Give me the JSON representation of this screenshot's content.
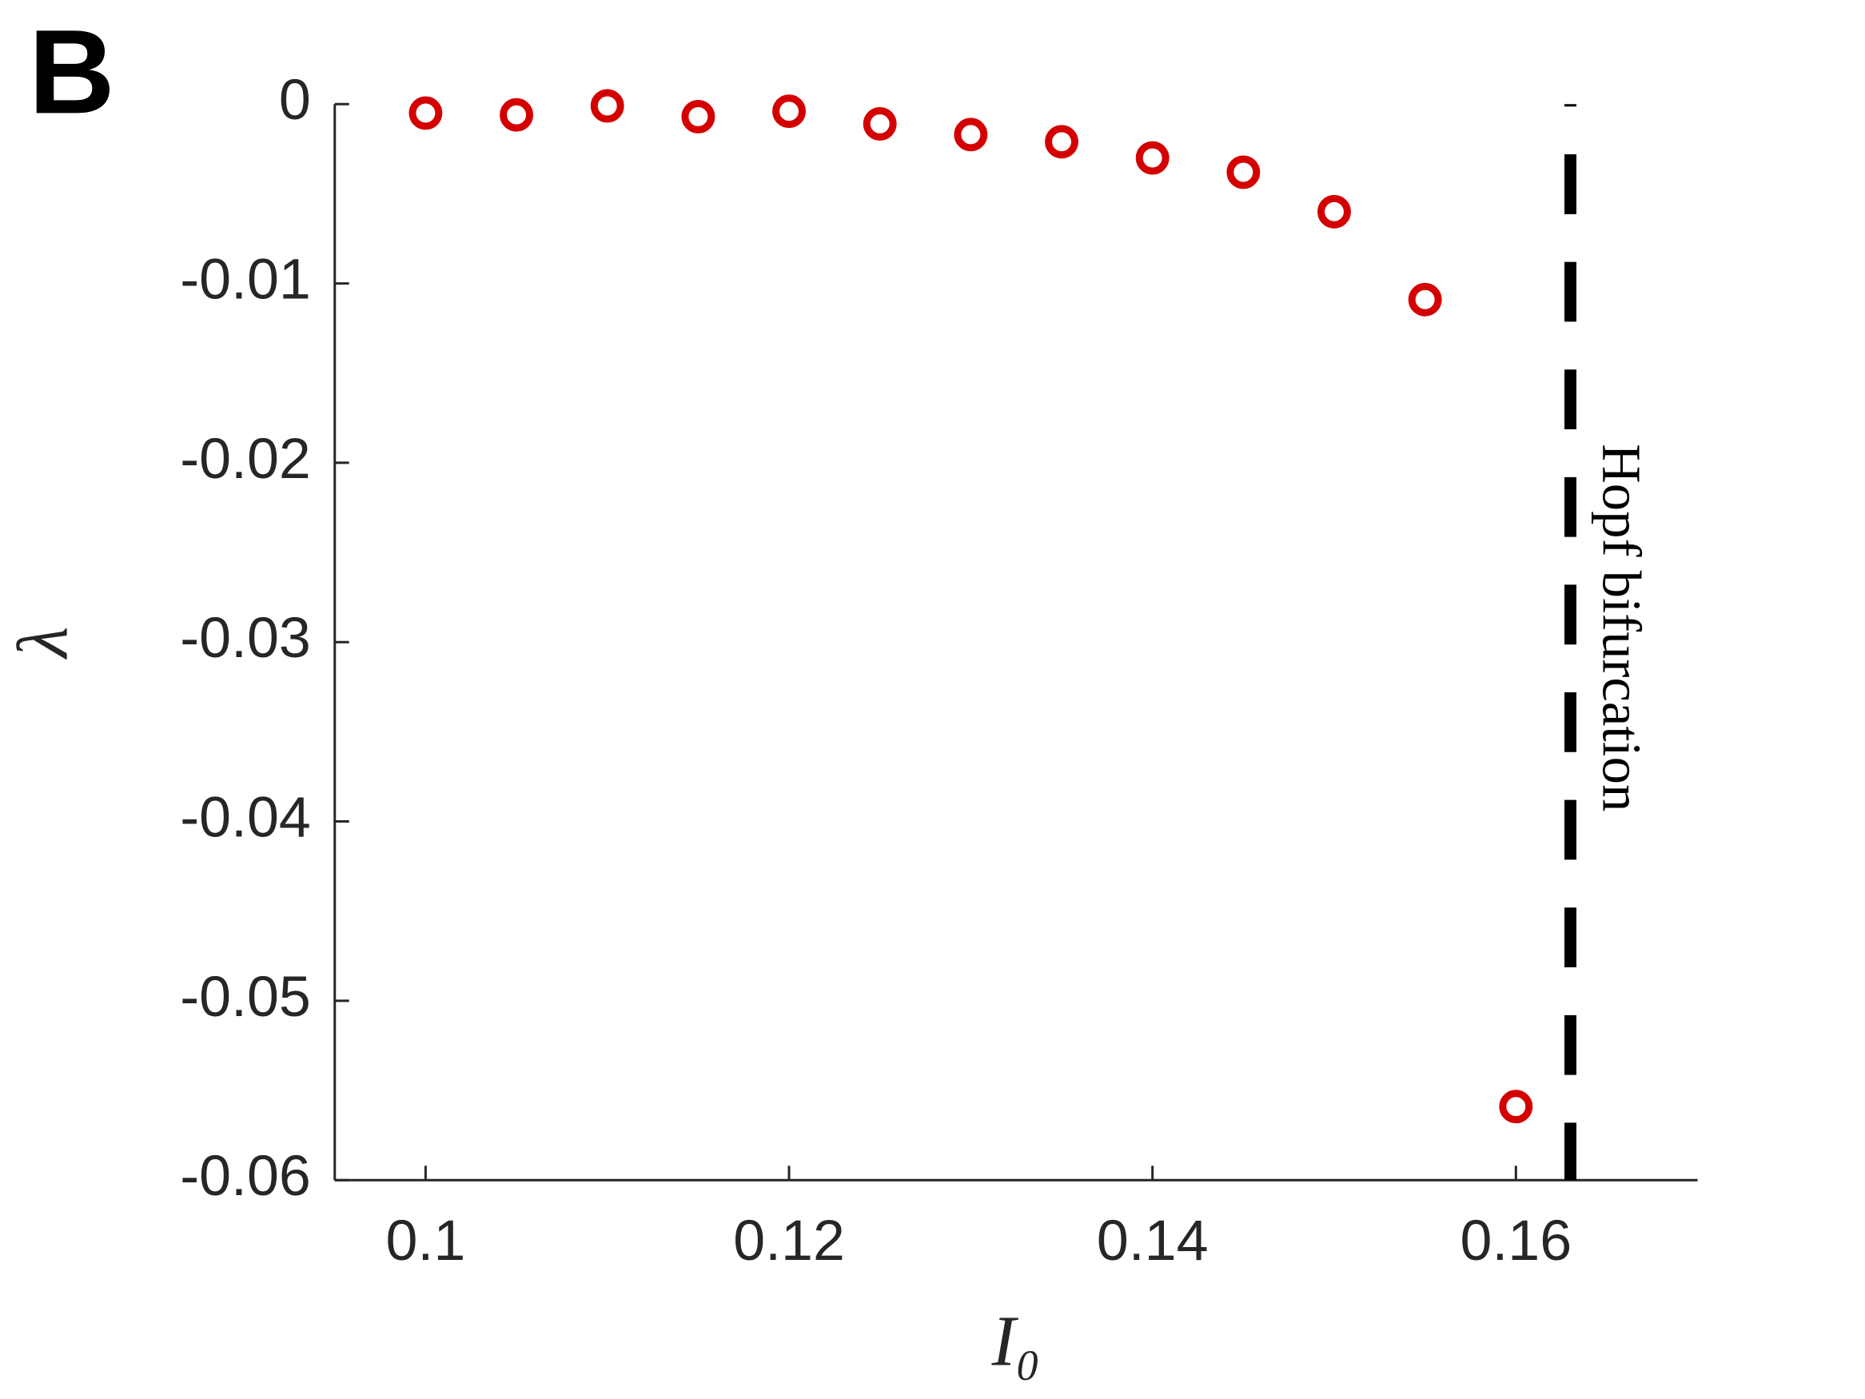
{
  "chart_data": {
    "type": "scatter",
    "panel_label": "B",
    "x_label": "I₀",
    "y_label": "λ",
    "x": [
      0.1,
      0.105,
      0.11,
      0.115,
      0.12,
      0.125,
      0.13,
      0.135,
      0.14,
      0.145,
      0.15,
      0.155,
      0.16
    ],
    "values": [
      -0.0005,
      -0.0006,
      -0.0001,
      -0.0007,
      -0.0004,
      -0.0011,
      -0.0017,
      -0.0021,
      -0.003,
      -0.0038,
      -0.006,
      -0.0109,
      -0.0559
    ],
    "color": "#d40000",
    "xlim": [
      0.095,
      0.17
    ],
    "xticks": [
      0.1,
      0.12,
      0.14,
      0.16
    ],
    "ylim": [
      -0.06,
      0
    ],
    "yticks": [
      0,
      -0.01,
      -0.02,
      -0.03,
      -0.04,
      -0.05,
      -0.06
    ],
    "vline": 0.163,
    "vline_label": "Hopf bifurcation",
    "grid": false
  }
}
